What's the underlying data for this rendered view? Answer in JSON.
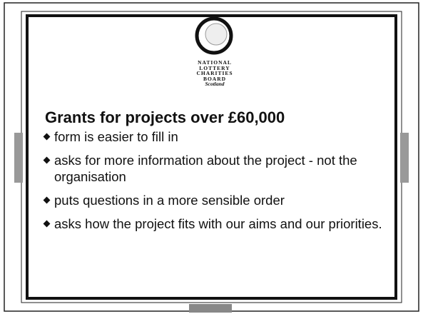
{
  "logo": {
    "lines": [
      "NATIONAL",
      "LOTTERY",
      "CHARITIES",
      "BOARD",
      "Scotland"
    ]
  },
  "heading": "Grants for projects over £60,000",
  "bullets": [
    "form is easier to fill in",
    "asks for more information about the project - not the organisation",
    "puts questions in a more sensible order",
    "asks how the project fits with our aims and our priorities."
  ]
}
